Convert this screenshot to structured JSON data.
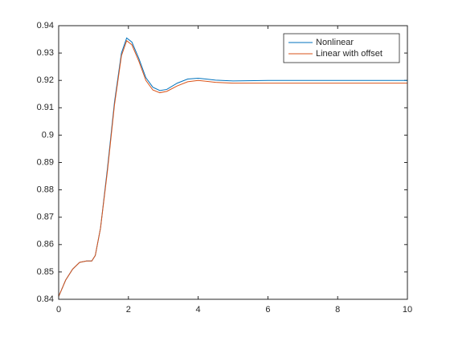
{
  "chart_data": {
    "type": "line",
    "x": [
      0,
      0.2,
      0.4,
      0.6,
      0.8,
      0.95,
      1.05,
      1.2,
      1.4,
      1.6,
      1.8,
      1.95,
      2.1,
      2.3,
      2.5,
      2.7,
      2.9,
      3.1,
      3.4,
      3.7,
      4,
      4.5,
      5,
      6,
      7,
      8,
      9,
      10
    ],
    "series": [
      {
        "name": "Nonlinear",
        "color": "#0072BD",
        "values": [
          0.841,
          0.847,
          0.851,
          0.8535,
          0.854,
          0.854,
          0.856,
          0.866,
          0.888,
          0.912,
          0.93,
          0.9355,
          0.934,
          0.928,
          0.921,
          0.9175,
          0.9163,
          0.9167,
          0.919,
          0.9205,
          0.9208,
          0.9201,
          0.9198,
          0.92,
          0.92,
          0.92,
          0.92,
          0.92
        ]
      },
      {
        "name": "Linear with offset",
        "color": "#D95319",
        "values": [
          0.841,
          0.847,
          0.851,
          0.8535,
          0.854,
          0.854,
          0.856,
          0.866,
          0.887,
          0.911,
          0.929,
          0.9345,
          0.933,
          0.927,
          0.92,
          0.9165,
          0.9155,
          0.916,
          0.918,
          0.9195,
          0.92,
          0.9193,
          0.919,
          0.919,
          0.919,
          0.919,
          0.919,
          0.919
        ]
      }
    ],
    "xlim": [
      0,
      10
    ],
    "xticks": [
      0,
      2,
      4,
      6,
      8,
      10
    ],
    "ylim": [
      0.84,
      0.94
    ],
    "yticks": [
      0.84,
      0.85,
      0.86,
      0.87,
      0.88,
      0.89,
      0.9,
      0.91,
      0.92,
      0.93,
      0.94
    ],
    "legend": "top-right"
  }
}
